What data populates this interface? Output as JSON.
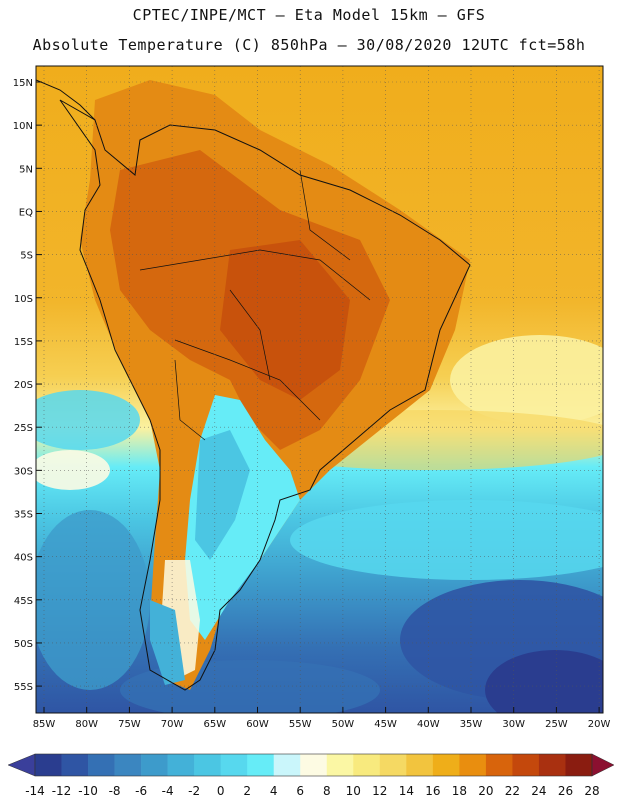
{
  "header": {
    "line1": "CPTEC/INPE/MCT –  Eta Model 15km – GFS",
    "line2": "Absolute Temperature (C) 850hPa – 30/08/2020 12UTC fct=58h"
  },
  "map": {
    "lat_labels": [
      "15N",
      "10N",
      "5N",
      "EQ",
      "5S",
      "10S",
      "15S",
      "20S",
      "25S",
      "30S",
      "35S",
      "40S",
      "45S",
      "50S",
      "55S"
    ],
    "lon_labels": [
      "85W",
      "80W",
      "75W",
      "70W",
      "65W",
      "60W",
      "55W",
      "50W",
      "45W",
      "40W",
      "35W",
      "30W",
      "25W",
      "20W"
    ]
  },
  "colorbar": {
    "ticks": [
      "-14",
      "-12",
      "-10",
      "-8",
      "-6",
      "-4",
      "-2",
      "0",
      "2",
      "4",
      "6",
      "8",
      "10",
      "12",
      "14",
      "16",
      "18",
      "20",
      "22",
      "24",
      "26",
      "28"
    ],
    "colors": [
      "#2a3d8f",
      "#2f55a4",
      "#3470b4",
      "#3b86c0",
      "#3d9bcb",
      "#43b1d8",
      "#4bc6e3",
      "#57d8ee",
      "#66ecf7",
      "#caf6fb",
      "#fdfbe3",
      "#fbf7a4",
      "#f8ea7e",
      "#f5d963",
      "#f2c43e",
      "#efae19",
      "#e98e0f",
      "#d8640c",
      "#c4480c",
      "#a93010",
      "#8a1c10"
    ],
    "low_color": "#3a3f9b",
    "high_color": "#8b1030"
  },
  "colors": {
    "ocean_north": "#f0ab1a",
    "land_warm": "#dd7a12",
    "land_hot": "#c8520c",
    "ocean_cold": "#43b1d8",
    "ocean_deep": "#2f55a4"
  }
}
